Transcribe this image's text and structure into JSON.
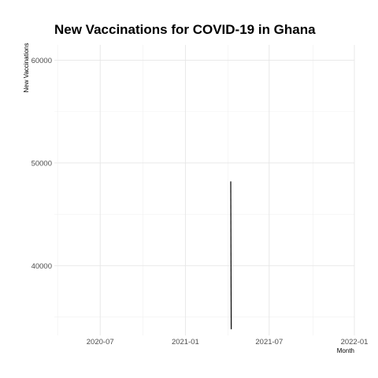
{
  "chart_data": {
    "type": "line",
    "title": "New Vaccinations for COVID-19 in Ghana",
    "xlabel": "Month",
    "ylabel": "New Vaccinations",
    "x_ticks": [
      "2020-07",
      "2021-01",
      "2021-07",
      "2022-01"
    ],
    "y_ticks": [
      40000,
      50000,
      60000
    ],
    "xlim": [
      "2020-03-24",
      "2022-01-01"
    ],
    "ylim": [
      33200,
      61500
    ],
    "grid": true,
    "legend": "none",
    "series": [
      {
        "color": "#000000",
        "points": [
          {
            "x": "2021-04-09",
            "y": 48200
          },
          {
            "x": "2021-04-10",
            "y": 33800
          }
        ]
      }
    ]
  }
}
